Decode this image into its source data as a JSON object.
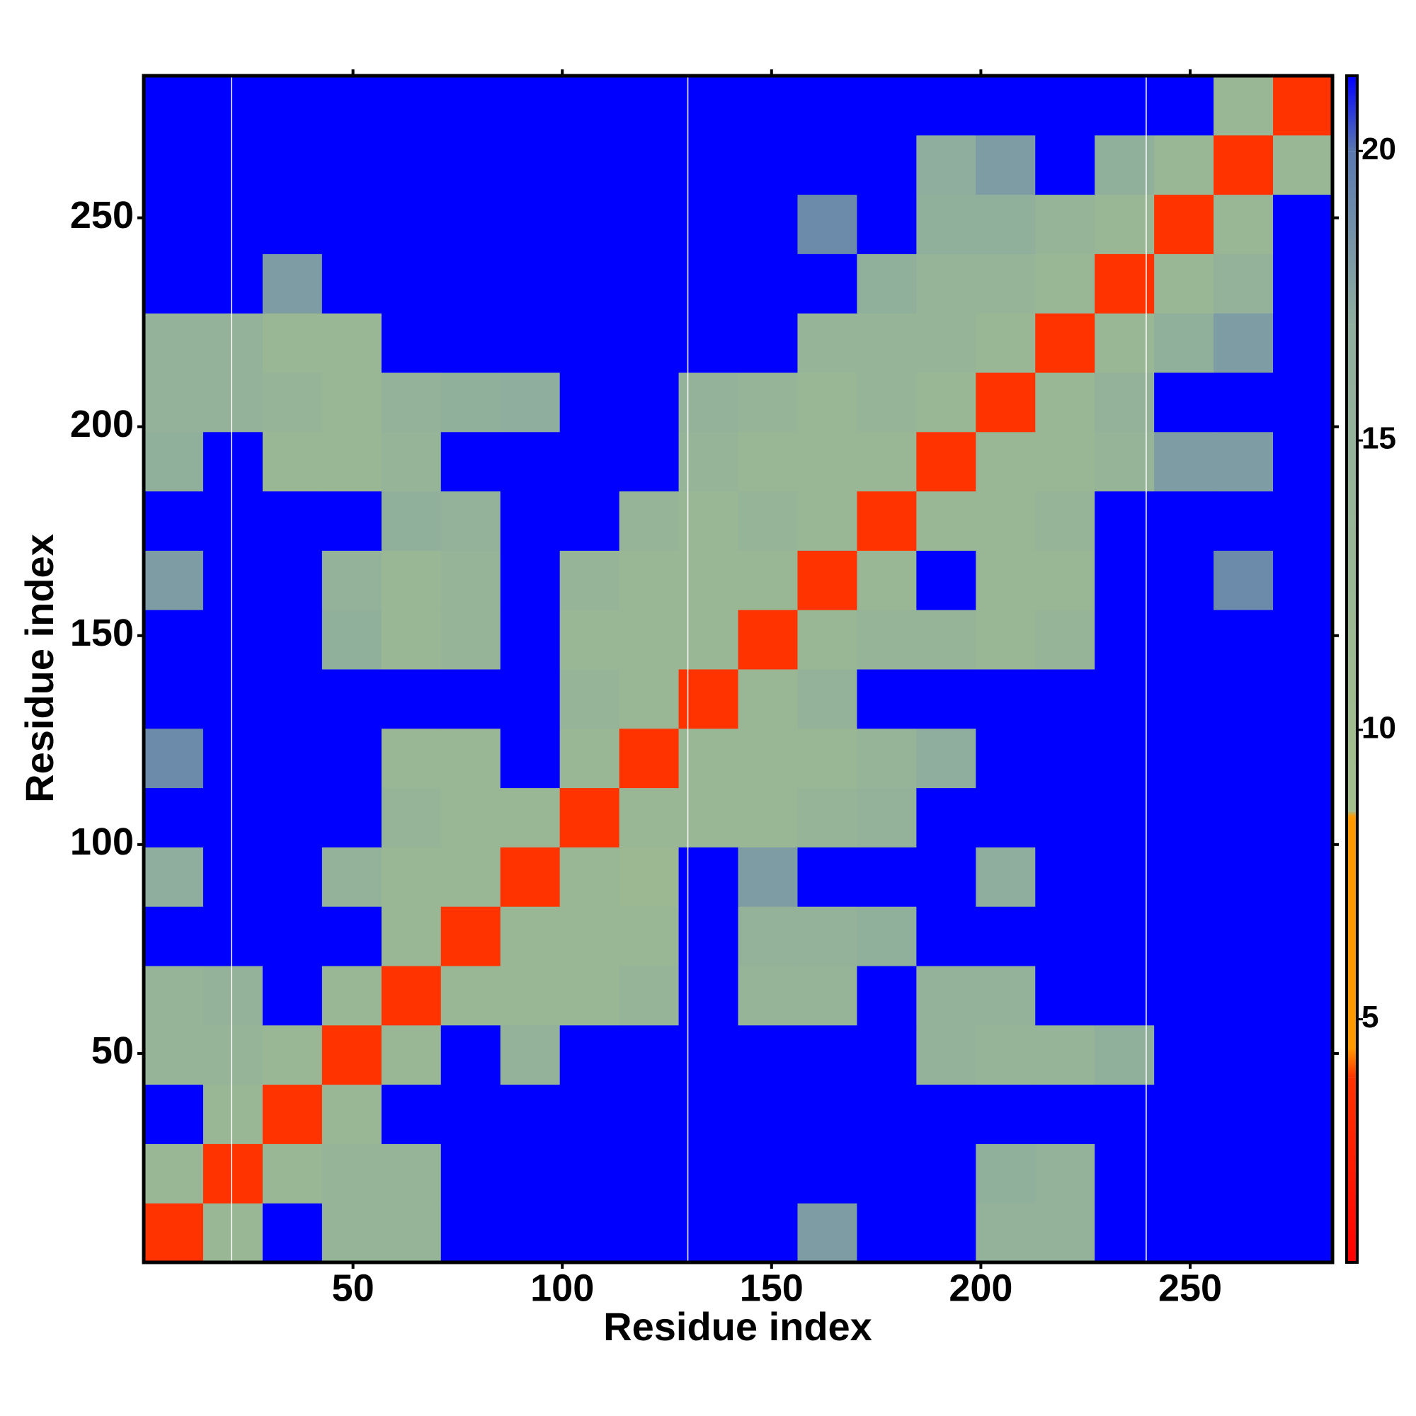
{
  "chart_data": {
    "type": "heatmap",
    "xlabel": "Residue index",
    "ylabel": "Residue index",
    "xlim": [
      0,
      284
    ],
    "ylim": [
      0,
      284
    ],
    "xticks": [
      50,
      100,
      150,
      200,
      250
    ],
    "yticks": [
      50,
      100,
      150,
      200,
      250
    ],
    "x_bins": [
      0,
      14.2,
      28.4,
      42.6,
      56.8,
      71,
      85.2,
      99.4,
      113.6,
      127.8,
      142,
      156.2,
      170.4,
      184.6,
      198.8,
      213,
      227.2,
      241.4,
      255.6,
      269.8,
      284
    ],
    "y_bins": [
      0,
      14.2,
      28.4,
      42.6,
      56.8,
      71,
      85.2,
      99.4,
      113.6,
      127.8,
      142,
      156.2,
      170.4,
      184.6,
      198.8,
      213,
      227.2,
      241.4,
      255.6,
      269.8,
      284
    ],
    "z": [
      [
        4,
        13,
        22,
        14,
        14,
        22,
        22,
        22,
        22,
        22,
        22,
        18,
        22,
        22,
        15,
        15,
        22,
        22,
        22,
        22
      ],
      [
        13,
        4,
        13,
        14,
        14,
        22,
        22,
        22,
        22,
        22,
        22,
        22,
        22,
        22,
        16,
        15,
        22,
        22,
        22,
        22
      ],
      [
        22,
        13,
        4,
        13,
        22,
        22,
        22,
        22,
        22,
        22,
        22,
        22,
        22,
        22,
        22,
        22,
        22,
        22,
        22,
        22
      ],
      [
        14,
        14,
        13,
        4,
        13,
        22,
        15,
        22,
        22,
        22,
        22,
        22,
        22,
        15,
        14,
        14,
        16,
        22,
        22,
        22
      ],
      [
        14,
        15,
        22,
        13,
        4,
        13,
        13,
        13,
        14,
        22,
        14,
        14,
        22,
        15,
        15,
        22,
        22,
        22,
        22,
        22
      ],
      [
        22,
        22,
        22,
        22,
        13,
        4,
        13,
        13,
        13,
        22,
        15,
        15,
        16,
        22,
        22,
        22,
        22,
        22,
        22,
        22
      ],
      [
        17,
        22,
        22,
        15,
        13,
        13,
        4,
        13,
        12,
        22,
        18,
        22,
        22,
        22,
        17,
        22,
        22,
        22,
        22,
        22
      ],
      [
        22,
        22,
        22,
        22,
        14,
        13,
        13,
        4,
        13,
        13,
        13,
        14,
        15,
        22,
        22,
        22,
        22,
        22,
        22,
        22
      ],
      [
        19,
        22,
        22,
        22,
        13,
        13,
        22,
        13,
        4,
        13,
        13,
        13,
        14,
        17,
        22,
        22,
        22,
        22,
        22,
        22
      ],
      [
        22,
        22,
        22,
        22,
        22,
        22,
        22,
        14,
        13,
        4,
        13,
        15,
        22,
        22,
        22,
        22,
        22,
        22,
        22,
        22
      ],
      [
        22,
        22,
        22,
        16,
        13,
        14,
        22,
        13,
        13,
        13,
        4,
        13,
        14,
        14,
        13,
        14,
        22,
        22,
        22,
        22
      ],
      [
        18,
        22,
        22,
        15,
        13,
        14,
        22,
        14,
        13,
        13,
        13,
        4,
        13,
        22,
        13,
        13,
        22,
        22,
        19,
        22
      ],
      [
        22,
        22,
        22,
        22,
        16,
        15,
        22,
        22,
        14,
        13,
        14,
        13,
        4,
        13,
        13,
        14,
        22,
        22,
        22,
        22
      ],
      [
        16,
        22,
        13,
        13,
        14,
        22,
        22,
        22,
        22,
        14,
        13,
        13,
        13,
        4,
        13,
        13,
        14,
        18,
        18,
        22
      ],
      [
        15,
        15,
        14,
        13,
        15,
        16,
        17,
        22,
        22,
        15,
        14,
        13,
        14,
        13,
        4,
        13,
        15,
        22,
        22,
        22
      ],
      [
        15,
        15,
        13,
        13,
        22,
        22,
        22,
        22,
        22,
        22,
        22,
        14,
        14,
        14,
        13,
        4,
        13,
        16,
        18,
        22
      ],
      [
        22,
        22,
        18,
        22,
        22,
        22,
        22,
        22,
        22,
        22,
        22,
        22,
        16,
        14,
        14,
        13,
        4,
        13,
        15,
        22
      ],
      [
        22,
        22,
        22,
        22,
        22,
        22,
        22,
        22,
        22,
        22,
        22,
        19,
        22,
        16,
        16,
        14,
        13,
        4,
        13,
        22
      ],
      [
        22,
        22,
        22,
        22,
        22,
        22,
        22,
        22,
        22,
        22,
        22,
        22,
        22,
        17,
        18,
        22,
        16,
        13,
        4,
        13
      ],
      [
        22,
        22,
        22,
        22,
        22,
        22,
        22,
        22,
        22,
        22,
        22,
        22,
        22,
        22,
        22,
        22,
        22,
        22,
        13,
        4
      ]
    ],
    "zlim": [
      0.8,
      21.3
    ],
    "zticks": [
      5,
      10,
      15,
      20
    ],
    "colorscale": [
      {
        "value": 0.8,
        "color": "#ff0000"
      },
      {
        "value": 4,
        "color": "#ff3300"
      },
      {
        "value": 4.5,
        "color": "#ff9900"
      },
      {
        "value": 8.5,
        "color": "#ff9900"
      },
      {
        "value": 8.6,
        "color": "#a3bf8c"
      },
      {
        "value": 17,
        "color": "#8fae9e"
      },
      {
        "value": 20,
        "color": "#5a78b0"
      },
      {
        "value": 21.3,
        "color": "#0000ff"
      }
    ],
    "boundaries": [
      21,
      130,
      239.5
    ],
    "boundary_color": "#ffffff"
  }
}
